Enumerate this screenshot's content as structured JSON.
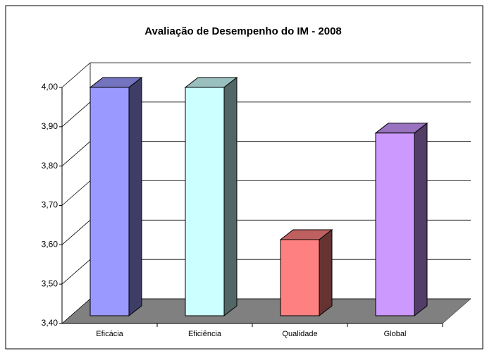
{
  "chart_data": {
    "type": "bar3d",
    "title": "Avaliação de Desempenho do IM - 2008",
    "categories": [
      "Eficácia",
      "Eficiência",
      "Qualidade",
      "Global"
    ],
    "values": [
      4.0,
      4.0,
      3.6,
      3.88
    ],
    "colors": [
      "#9999ff",
      "#ccffff",
      "#ff8080",
      "#cc99ff"
    ],
    "ylim": [
      3.4,
      4.0
    ],
    "yticks": [
      {
        "value": 3.4,
        "label": "3,40"
      },
      {
        "value": 3.5,
        "label": "3,50"
      },
      {
        "value": 3.6,
        "label": "3,60"
      },
      {
        "value": 3.7,
        "label": "3,70"
      },
      {
        "value": 3.8,
        "label": "3,80"
      },
      {
        "value": 3.9,
        "label": "3,90"
      },
      {
        "value": 4.0,
        "label": "4,00"
      }
    ],
    "grid": true
  }
}
